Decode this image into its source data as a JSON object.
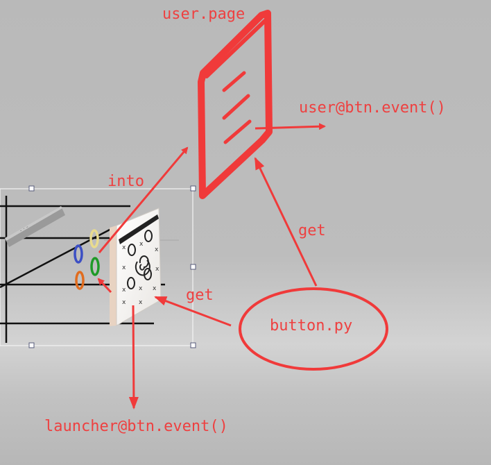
{
  "labels": {
    "user_page": "user.page",
    "user_event": "user@btn.event()",
    "into": "into",
    "get_top": "get",
    "get_left": "get",
    "button_py": "button.py",
    "launcher_event": "launcher@btn.event()"
  },
  "colors": {
    "annotation": "#f03a3a",
    "background": "#bdbdbd"
  }
}
